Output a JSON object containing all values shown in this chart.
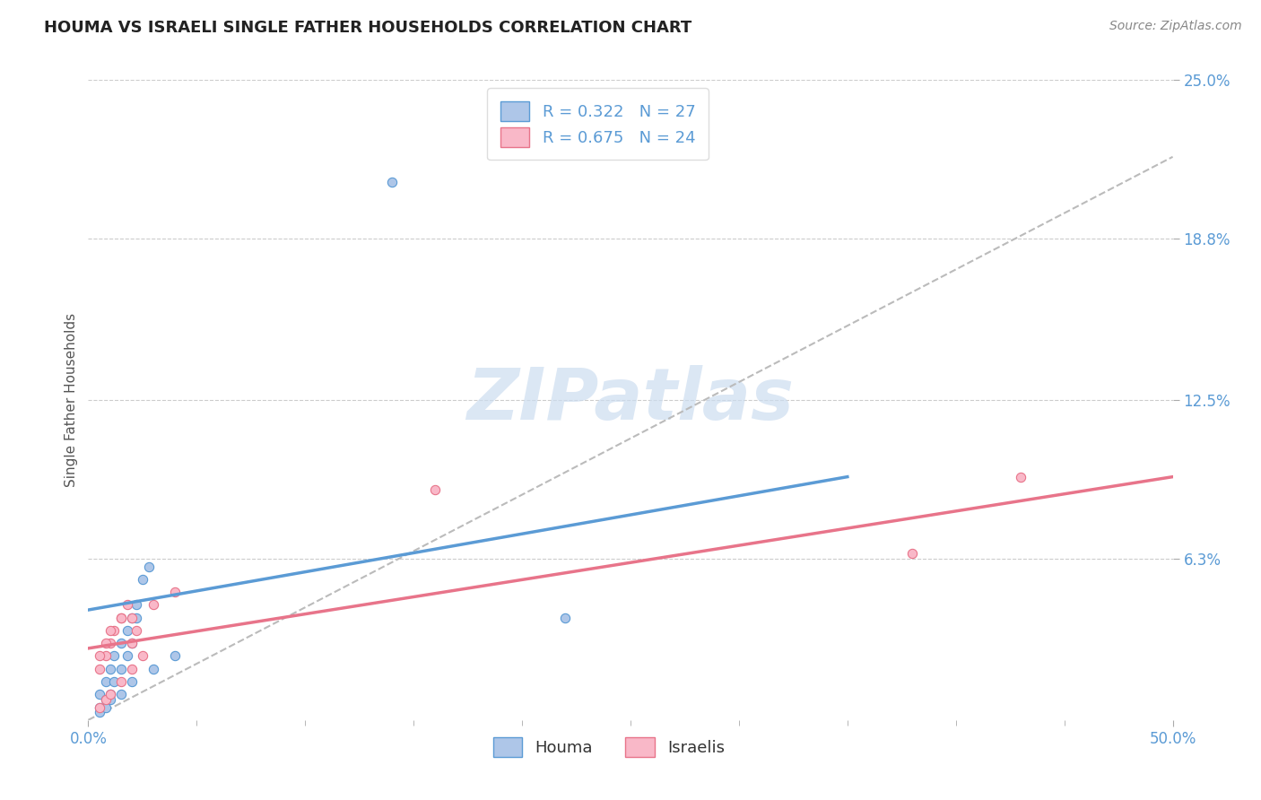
{
  "title": "HOUMA VS ISRAELI SINGLE FATHER HOUSEHOLDS CORRELATION CHART",
  "source_text": "Source: ZipAtlas.com",
  "ylabel": "Single Father Households",
  "xlim": [
    0.0,
    0.5
  ],
  "ylim": [
    0.0,
    0.25
  ],
  "ytick_positions": [
    0.25,
    0.188,
    0.125,
    0.063
  ],
  "ytick_labels": [
    "25.0%",
    "18.8%",
    "12.5%",
    "6.3%"
  ],
  "xtick_positions": [
    0.0,
    0.5
  ],
  "xtick_labels": [
    "0.0%",
    "50.0%"
  ],
  "grid_color": "#cccccc",
  "background_color": "#ffffff",
  "watermark_text": "ZIPatlas",
  "houma_color": "#aec6e8",
  "houma_edge_color": "#5b9bd5",
  "israeli_color": "#f9b8c8",
  "israeli_edge_color": "#e8748a",
  "houma_line_color": "#5b9bd5",
  "israeli_line_color": "#e8748a",
  "gray_dash_color": "#bbbbbb",
  "tick_color": "#5b9bd5",
  "title_color": "#222222",
  "source_color": "#888888",
  "ylabel_color": "#555555",
  "legend_text_color": "#5b9bd5",
  "watermark_color": "#ccddf0",
  "legend_houma_label": "R = 0.322   N = 27",
  "legend_israeli_label": "R = 0.675   N = 24",
  "houma_scatter_x": [
    0.005,
    0.008,
    0.01,
    0.012,
    0.015,
    0.018,
    0.02,
    0.022,
    0.025,
    0.028,
    0.005,
    0.008,
    0.01,
    0.012,
    0.015,
    0.018,
    0.02,
    0.022,
    0.005,
    0.008,
    0.01,
    0.015,
    0.02,
    0.03,
    0.04,
    0.14,
    0.22
  ],
  "houma_scatter_y": [
    0.01,
    0.015,
    0.02,
    0.025,
    0.03,
    0.035,
    0.04,
    0.045,
    0.055,
    0.06,
    0.005,
    0.008,
    0.01,
    0.015,
    0.02,
    0.025,
    0.03,
    0.04,
    0.003,
    0.005,
    0.008,
    0.01,
    0.015,
    0.02,
    0.025,
    0.21,
    0.04
  ],
  "israeli_scatter_x": [
    0.005,
    0.008,
    0.01,
    0.012,
    0.015,
    0.018,
    0.02,
    0.022,
    0.005,
    0.008,
    0.01,
    0.015,
    0.02,
    0.025,
    0.005,
    0.008,
    0.01,
    0.015,
    0.02,
    0.03,
    0.04,
    0.16,
    0.38,
    0.43
  ],
  "israeli_scatter_y": [
    0.02,
    0.025,
    0.03,
    0.035,
    0.04,
    0.045,
    0.03,
    0.035,
    0.005,
    0.008,
    0.01,
    0.015,
    0.02,
    0.025,
    0.025,
    0.03,
    0.035,
    0.04,
    0.04,
    0.045,
    0.05,
    0.09,
    0.065,
    0.095
  ],
  "houma_line_x": [
    0.0,
    0.35
  ],
  "houma_line_y": [
    0.043,
    0.095
  ],
  "israeli_line_x": [
    0.0,
    0.5
  ],
  "israeli_line_y": [
    0.028,
    0.095
  ],
  "gray_line_x": [
    0.0,
    0.5
  ],
  "gray_line_y": [
    0.0,
    0.22
  ]
}
